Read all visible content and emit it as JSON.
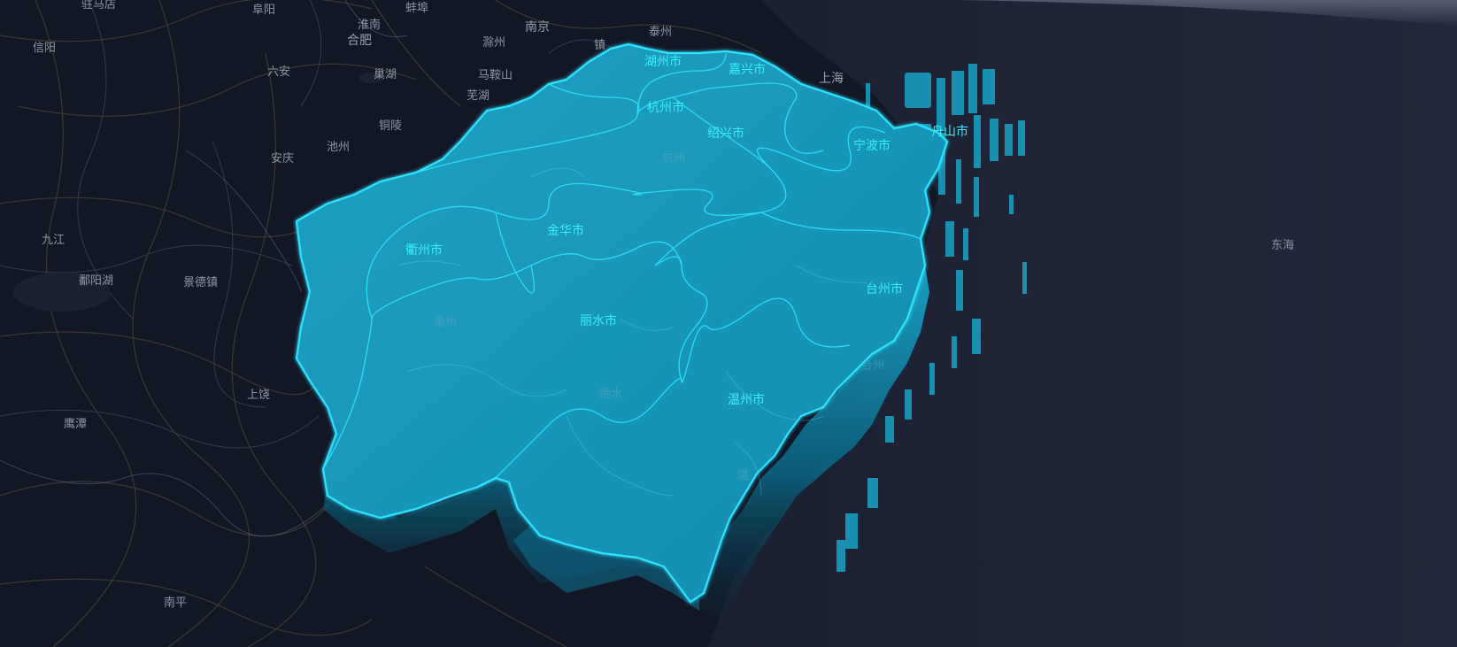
{
  "map": {
    "province": "浙江",
    "colors": {
      "background": "#121726",
      "sea": "#1e2233",
      "province_fill": "#1793b5",
      "province_edge": "#2fe3ff",
      "extrusion": "#0b5e78",
      "label": "#39f0ff",
      "basemap_label": "#8f96a3"
    },
    "city_labels": [
      {
        "id": "huzhou",
        "text": "湖州市"
      },
      {
        "id": "jiaxing",
        "text": "嘉兴市"
      },
      {
        "id": "hangzhou",
        "text": "杭州市"
      },
      {
        "id": "shaoxing",
        "text": "绍兴市"
      },
      {
        "id": "zhoushan",
        "text": "舟山市"
      },
      {
        "id": "ningbo",
        "text": "宁波市"
      },
      {
        "id": "quzhou",
        "text": "衢州市"
      },
      {
        "id": "jinhua",
        "text": "金华市"
      },
      {
        "id": "taizhou",
        "text": "台州市"
      },
      {
        "id": "lishui",
        "text": "丽水市"
      },
      {
        "id": "wenzhou",
        "text": "温州市"
      }
    ],
    "faint_labels": [
      {
        "id": "lishui-faint",
        "text": "丽水"
      },
      {
        "id": "taizhou-faint",
        "text": "台州"
      },
      {
        "id": "quzhou-faint",
        "text": "衢州"
      },
      {
        "id": "hangzhou-faint",
        "text": "杭州"
      },
      {
        "id": "wenzhou-faint",
        "text": "温"
      }
    ],
    "basemap_labels": [
      {
        "id": "zhumadian",
        "text": "驻马店"
      },
      {
        "id": "fuyang",
        "text": "阜阳"
      },
      {
        "id": "bengbu",
        "text": "蚌埠"
      },
      {
        "id": "nanjing",
        "text": "南京"
      },
      {
        "id": "xinyang",
        "text": "信阳"
      },
      {
        "id": "huainan",
        "text": "淮南"
      },
      {
        "id": "hefei",
        "text": "合肥"
      },
      {
        "id": "chuzhou",
        "text": "滁州"
      },
      {
        "id": "taizhou-js",
        "text": "泰州"
      },
      {
        "id": "zhen",
        "text": "镇"
      },
      {
        "id": "luan",
        "text": "六安"
      },
      {
        "id": "chaohu",
        "text": "巢湖"
      },
      {
        "id": "maanshan",
        "text": "马鞍山"
      },
      {
        "id": "wuhu",
        "text": "芜湖"
      },
      {
        "id": "shanghai",
        "text": "上海"
      },
      {
        "id": "tongling",
        "text": "铜陵"
      },
      {
        "id": "chizhou",
        "text": "池州"
      },
      {
        "id": "anqing",
        "text": "安庆"
      },
      {
        "id": "jiujiang",
        "text": "九江"
      },
      {
        "id": "poyanghu",
        "text": "鄱阳湖"
      },
      {
        "id": "jingdezhen",
        "text": "景德镇"
      },
      {
        "id": "shangrao",
        "text": "上饶"
      },
      {
        "id": "yingtan",
        "text": "鹰潭"
      },
      {
        "id": "nanping",
        "text": "南平"
      },
      {
        "id": "donghai",
        "text": "东海"
      }
    ]
  }
}
